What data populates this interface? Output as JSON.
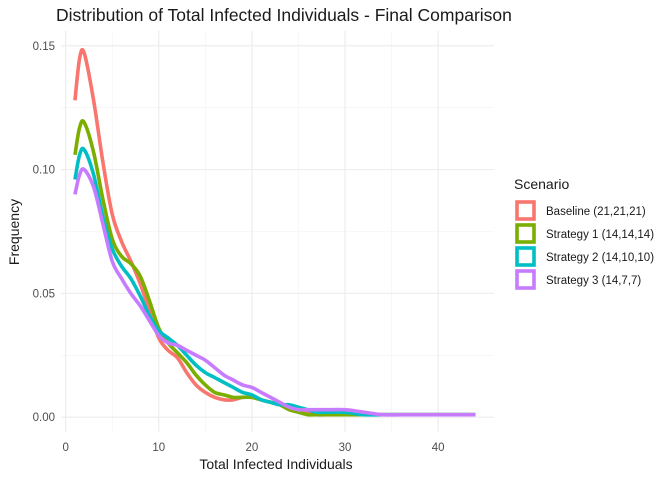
{
  "chart_data": {
    "type": "line",
    "title": "Distribution of Total Infected Individuals - Final Comparison",
    "xlabel": "Total Infected Individuals",
    "ylabel": "Frequency",
    "xlim": [
      -0.5,
      46
    ],
    "ylim": [
      -0.006,
      0.156
    ],
    "x_ticks": [
      0,
      10,
      20,
      30,
      40
    ],
    "x_tick_labels": [
      "0",
      "10",
      "20",
      "30",
      "40"
    ],
    "y_ticks": [
      0,
      0.05,
      0.1,
      0.15
    ],
    "y_tick_labels": [
      "0.00",
      "0.05",
      "0.10",
      "0.15"
    ],
    "grid": true,
    "legend": {
      "title": "Scenario",
      "placement": "right"
    },
    "series": [
      {
        "name": "Baseline (21,21,21)",
        "color": "#F8766D",
        "x": [
          1,
          1.5,
          2,
          3,
          4,
          5,
          6,
          7,
          8,
          9,
          10,
          11,
          12,
          13,
          14,
          15,
          16,
          17,
          18,
          19,
          20,
          21,
          22,
          23,
          24,
          25,
          26,
          27,
          28,
          30,
          32,
          34,
          36,
          38,
          40,
          42,
          44
        ],
        "y": [
          0.128,
          0.145,
          0.147,
          0.128,
          0.103,
          0.082,
          0.071,
          0.063,
          0.054,
          0.043,
          0.032,
          0.027,
          0.024,
          0.018,
          0.013,
          0.01,
          0.008,
          0.007,
          0.007,
          0.008,
          0.008,
          0.007,
          0.006,
          0.005,
          0.004,
          0.003,
          0.002,
          0.001,
          0.001,
          0.001,
          0.001,
          0.001,
          0.001,
          0.001,
          0.001,
          0.001,
          0.001
        ]
      },
      {
        "name": "Strategy 1 (14,14,14)",
        "color": "#7CAE00",
        "x": [
          1,
          1.5,
          2,
          3,
          4,
          5,
          6,
          7,
          8,
          9,
          10,
          11,
          12,
          13,
          14,
          15,
          16,
          17,
          18,
          19,
          20,
          21,
          22,
          23,
          24,
          25,
          26,
          27,
          28,
          30,
          32,
          34,
          36,
          38,
          40,
          42,
          44
        ],
        "y": [
          0.106,
          0.117,
          0.119,
          0.107,
          0.088,
          0.072,
          0.065,
          0.062,
          0.057,
          0.047,
          0.036,
          0.03,
          0.026,
          0.022,
          0.017,
          0.013,
          0.01,
          0.009,
          0.008,
          0.008,
          0.008,
          0.007,
          0.006,
          0.005,
          0.003,
          0.002,
          0.001,
          0.001,
          0.001,
          0.001,
          0.001,
          0.001,
          0.001,
          0.001,
          0.001,
          0.001,
          0.001
        ]
      },
      {
        "name": "Strategy 2 (14,10,10)",
        "color": "#00BFC4",
        "x": [
          1,
          1.5,
          2,
          3,
          4,
          5,
          6,
          7,
          8,
          9,
          10,
          11,
          12,
          13,
          14,
          15,
          16,
          17,
          18,
          19,
          20,
          21,
          22,
          23,
          24,
          25,
          26,
          27,
          28,
          30,
          32,
          34,
          36,
          38,
          40,
          42,
          44
        ],
        "y": [
          0.096,
          0.106,
          0.108,
          0.098,
          0.081,
          0.068,
          0.061,
          0.056,
          0.049,
          0.041,
          0.035,
          0.032,
          0.029,
          0.025,
          0.021,
          0.018,
          0.016,
          0.014,
          0.012,
          0.01,
          0.009,
          0.007,
          0.006,
          0.005,
          0.005,
          0.004,
          0.003,
          0.002,
          0.002,
          0.002,
          0.001,
          0.001,
          0.001,
          0.001,
          0.001,
          0.001,
          0.001
        ]
      },
      {
        "name": "Strategy 3 (14,7,7)",
        "color": "#C77CFF",
        "x": [
          1,
          1.5,
          2,
          3,
          4,
          5,
          6,
          7,
          8,
          9,
          10,
          11,
          12,
          13,
          14,
          15,
          16,
          17,
          18,
          19,
          20,
          21,
          22,
          23,
          24,
          25,
          26,
          27,
          28,
          30,
          32,
          34,
          36,
          38,
          40,
          42,
          44
        ],
        "y": [
          0.09,
          0.098,
          0.1,
          0.093,
          0.078,
          0.063,
          0.056,
          0.05,
          0.045,
          0.039,
          0.033,
          0.03,
          0.029,
          0.027,
          0.025,
          0.023,
          0.02,
          0.017,
          0.015,
          0.013,
          0.012,
          0.01,
          0.008,
          0.006,
          0.004,
          0.003,
          0.003,
          0.003,
          0.003,
          0.003,
          0.002,
          0.001,
          0.001,
          0.001,
          0.001,
          0.001,
          0.001
        ]
      }
    ]
  }
}
